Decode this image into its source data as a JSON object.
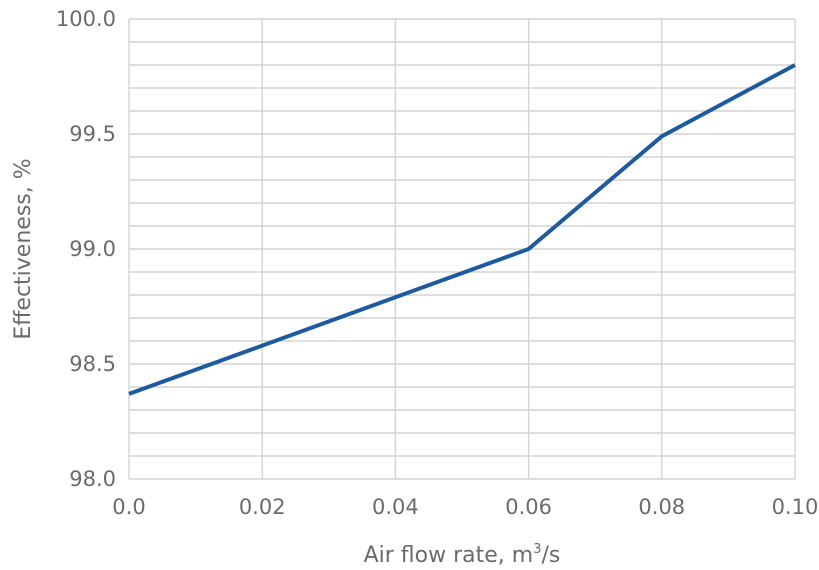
{
  "chart_data": {
    "type": "line",
    "title": "",
    "xlabel": "Air flow rate, m³/s",
    "xlabel_parts": {
      "main": "Air flow rate, m",
      "sup": "3",
      "after": "/s"
    },
    "ylabel": "Effectiveness, %",
    "xlim": [
      0.0,
      0.1
    ],
    "ylim": [
      98.0,
      100.0
    ],
    "x_ticks": [
      "0.0",
      "0.02",
      "0.04",
      "0.06",
      "0.08",
      "0.10"
    ],
    "y_ticks": [
      "98.0",
      "98.5",
      "99.0",
      "99.5",
      "100.0"
    ],
    "grid": true,
    "series": [
      {
        "x": [
          0.0,
          0.02,
          0.04,
          0.06,
          0.08,
          0.1
        ],
        "values": [
          98.37,
          98.58,
          98.79,
          99.0,
          99.49,
          99.8
        ]
      }
    ]
  },
  "colors": {
    "line": "#1d5a9e",
    "grid": "#d4d4d4",
    "axis_text": "#6b6b6b",
    "background": "#ffffff"
  }
}
